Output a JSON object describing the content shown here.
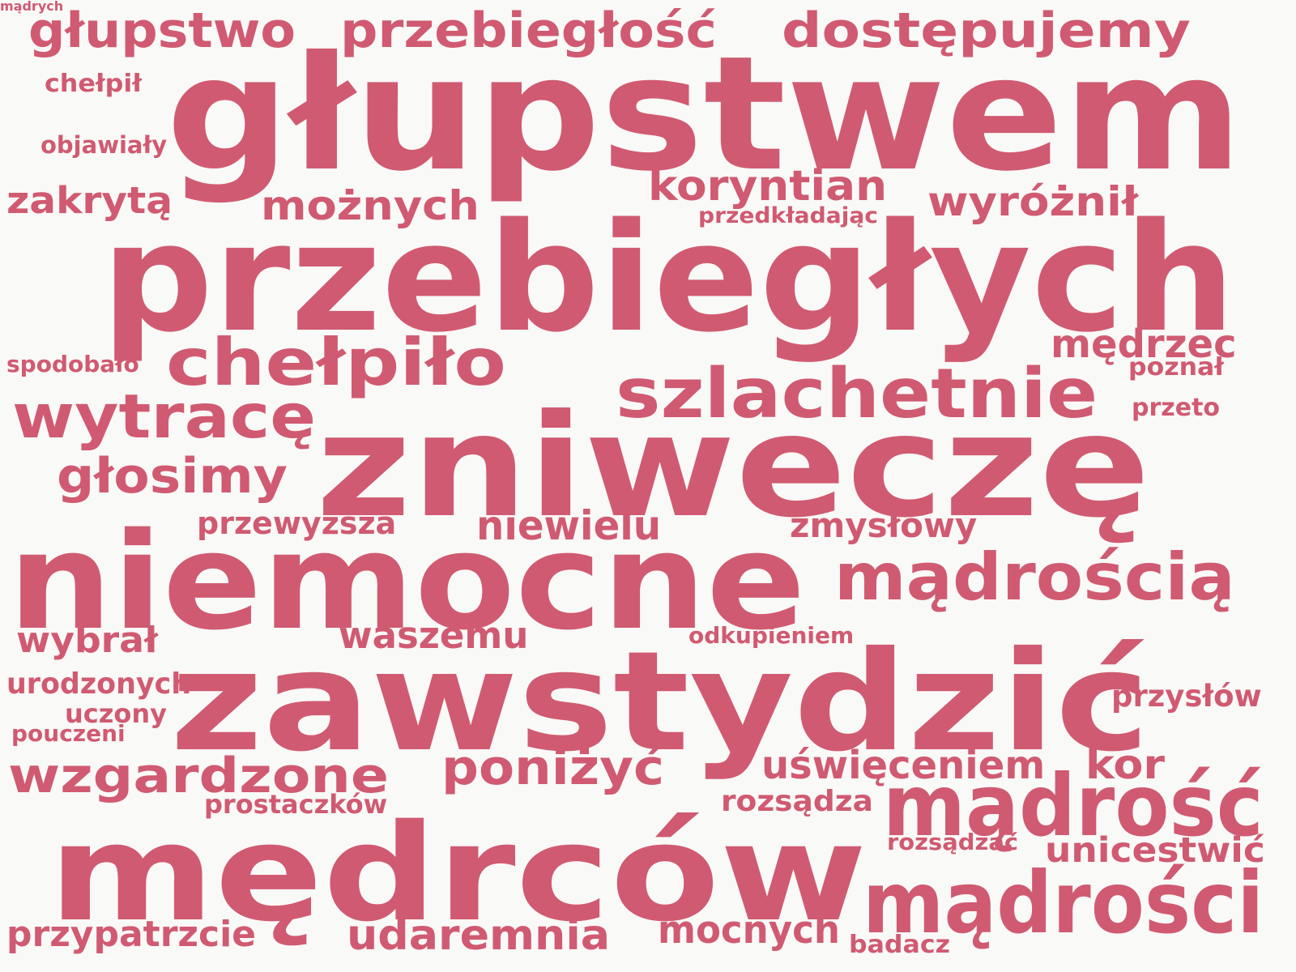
{
  "colors": {
    "background": "#f9f9f7",
    "word": "#d05a71"
  },
  "words": [
    {
      "id": "glupstwem",
      "text": "głupstwem"
    },
    {
      "id": "przebieglych",
      "text": "przebiegłych"
    },
    {
      "id": "zniwecze",
      "text": "zniweczę"
    },
    {
      "id": "niemocne",
      "text": "niemocne"
    },
    {
      "id": "zawstydzic",
      "text": "zawstydzić"
    },
    {
      "id": "medrcow",
      "text": "mędrców"
    },
    {
      "id": "madrosc",
      "text": "mądrość"
    },
    {
      "id": "madrosci",
      "text": "mądrości"
    },
    {
      "id": "madroscia",
      "text": "mądrością"
    },
    {
      "id": "szlachetnie",
      "text": "szlachetnie"
    },
    {
      "id": "chelpilo",
      "text": "chełpiło"
    },
    {
      "id": "wytrace",
      "text": "wytracę"
    },
    {
      "id": "glupstwo",
      "text": "głupstwo"
    },
    {
      "id": "przebieglosc",
      "text": "przebiegłość"
    },
    {
      "id": "dostepujemy",
      "text": "dostępujemy"
    },
    {
      "id": "wzgardzone",
      "text": "wzgardzone"
    },
    {
      "id": "ponizyc",
      "text": "poniżyć"
    },
    {
      "id": "glosimy",
      "text": "głosimy"
    },
    {
      "id": "koryntian",
      "text": "koryntian"
    },
    {
      "id": "moznych",
      "text": "możnych"
    },
    {
      "id": "wyroznil",
      "text": "wyróżnił"
    },
    {
      "id": "mądrych",
      "text": "mądrych"
    },
    {
      "id": "medrzec",
      "text": "mędrzec"
    },
    {
      "id": "zakryta",
      "text": "zakrytą"
    },
    {
      "id": "niewielu",
      "text": "niewielu"
    },
    {
      "id": "zmyslowy",
      "text": "zmysłowy"
    },
    {
      "id": "przewyzsza",
      "text": "przewyższa"
    },
    {
      "id": "waszemu",
      "text": "waszemu"
    },
    {
      "id": "wybral",
      "text": "wybrał"
    },
    {
      "id": "uswieceniem",
      "text": "uświęceniem"
    },
    {
      "id": "kor",
      "text": "kor"
    },
    {
      "id": "udaremnia",
      "text": "udaremnia"
    },
    {
      "id": "mocnych",
      "text": "mocnych"
    },
    {
      "id": "przypatrzcie",
      "text": "przypatrzcie"
    },
    {
      "id": "unicestwic",
      "text": "unicestwić"
    },
    {
      "id": "przyslow",
      "text": "przysłów"
    },
    {
      "id": "rozsadza",
      "text": "rozsądza"
    },
    {
      "id": "urodzonych",
      "text": "urodzonych"
    },
    {
      "id": "prostaczkow",
      "text": "prostaczków"
    },
    {
      "id": "odkupieniem",
      "text": "odkupieniem"
    },
    {
      "id": "rozsadzac",
      "text": "rozsądzać"
    },
    {
      "id": "uczony",
      "text": "uczony"
    },
    {
      "id": "pouczeni",
      "text": "pouczeni"
    },
    {
      "id": "przedkladajac",
      "text": "przedkładając"
    },
    {
      "id": "chelpil",
      "text": "chełpił"
    },
    {
      "id": "objawialy",
      "text": "objawiały"
    },
    {
      "id": "spodobalo",
      "text": "spodobało"
    },
    {
      "id": "poznal",
      "text": "poznał"
    },
    {
      "id": "przeto",
      "text": "przeto"
    },
    {
      "id": "badacz",
      "text": "badacz"
    }
  ]
}
